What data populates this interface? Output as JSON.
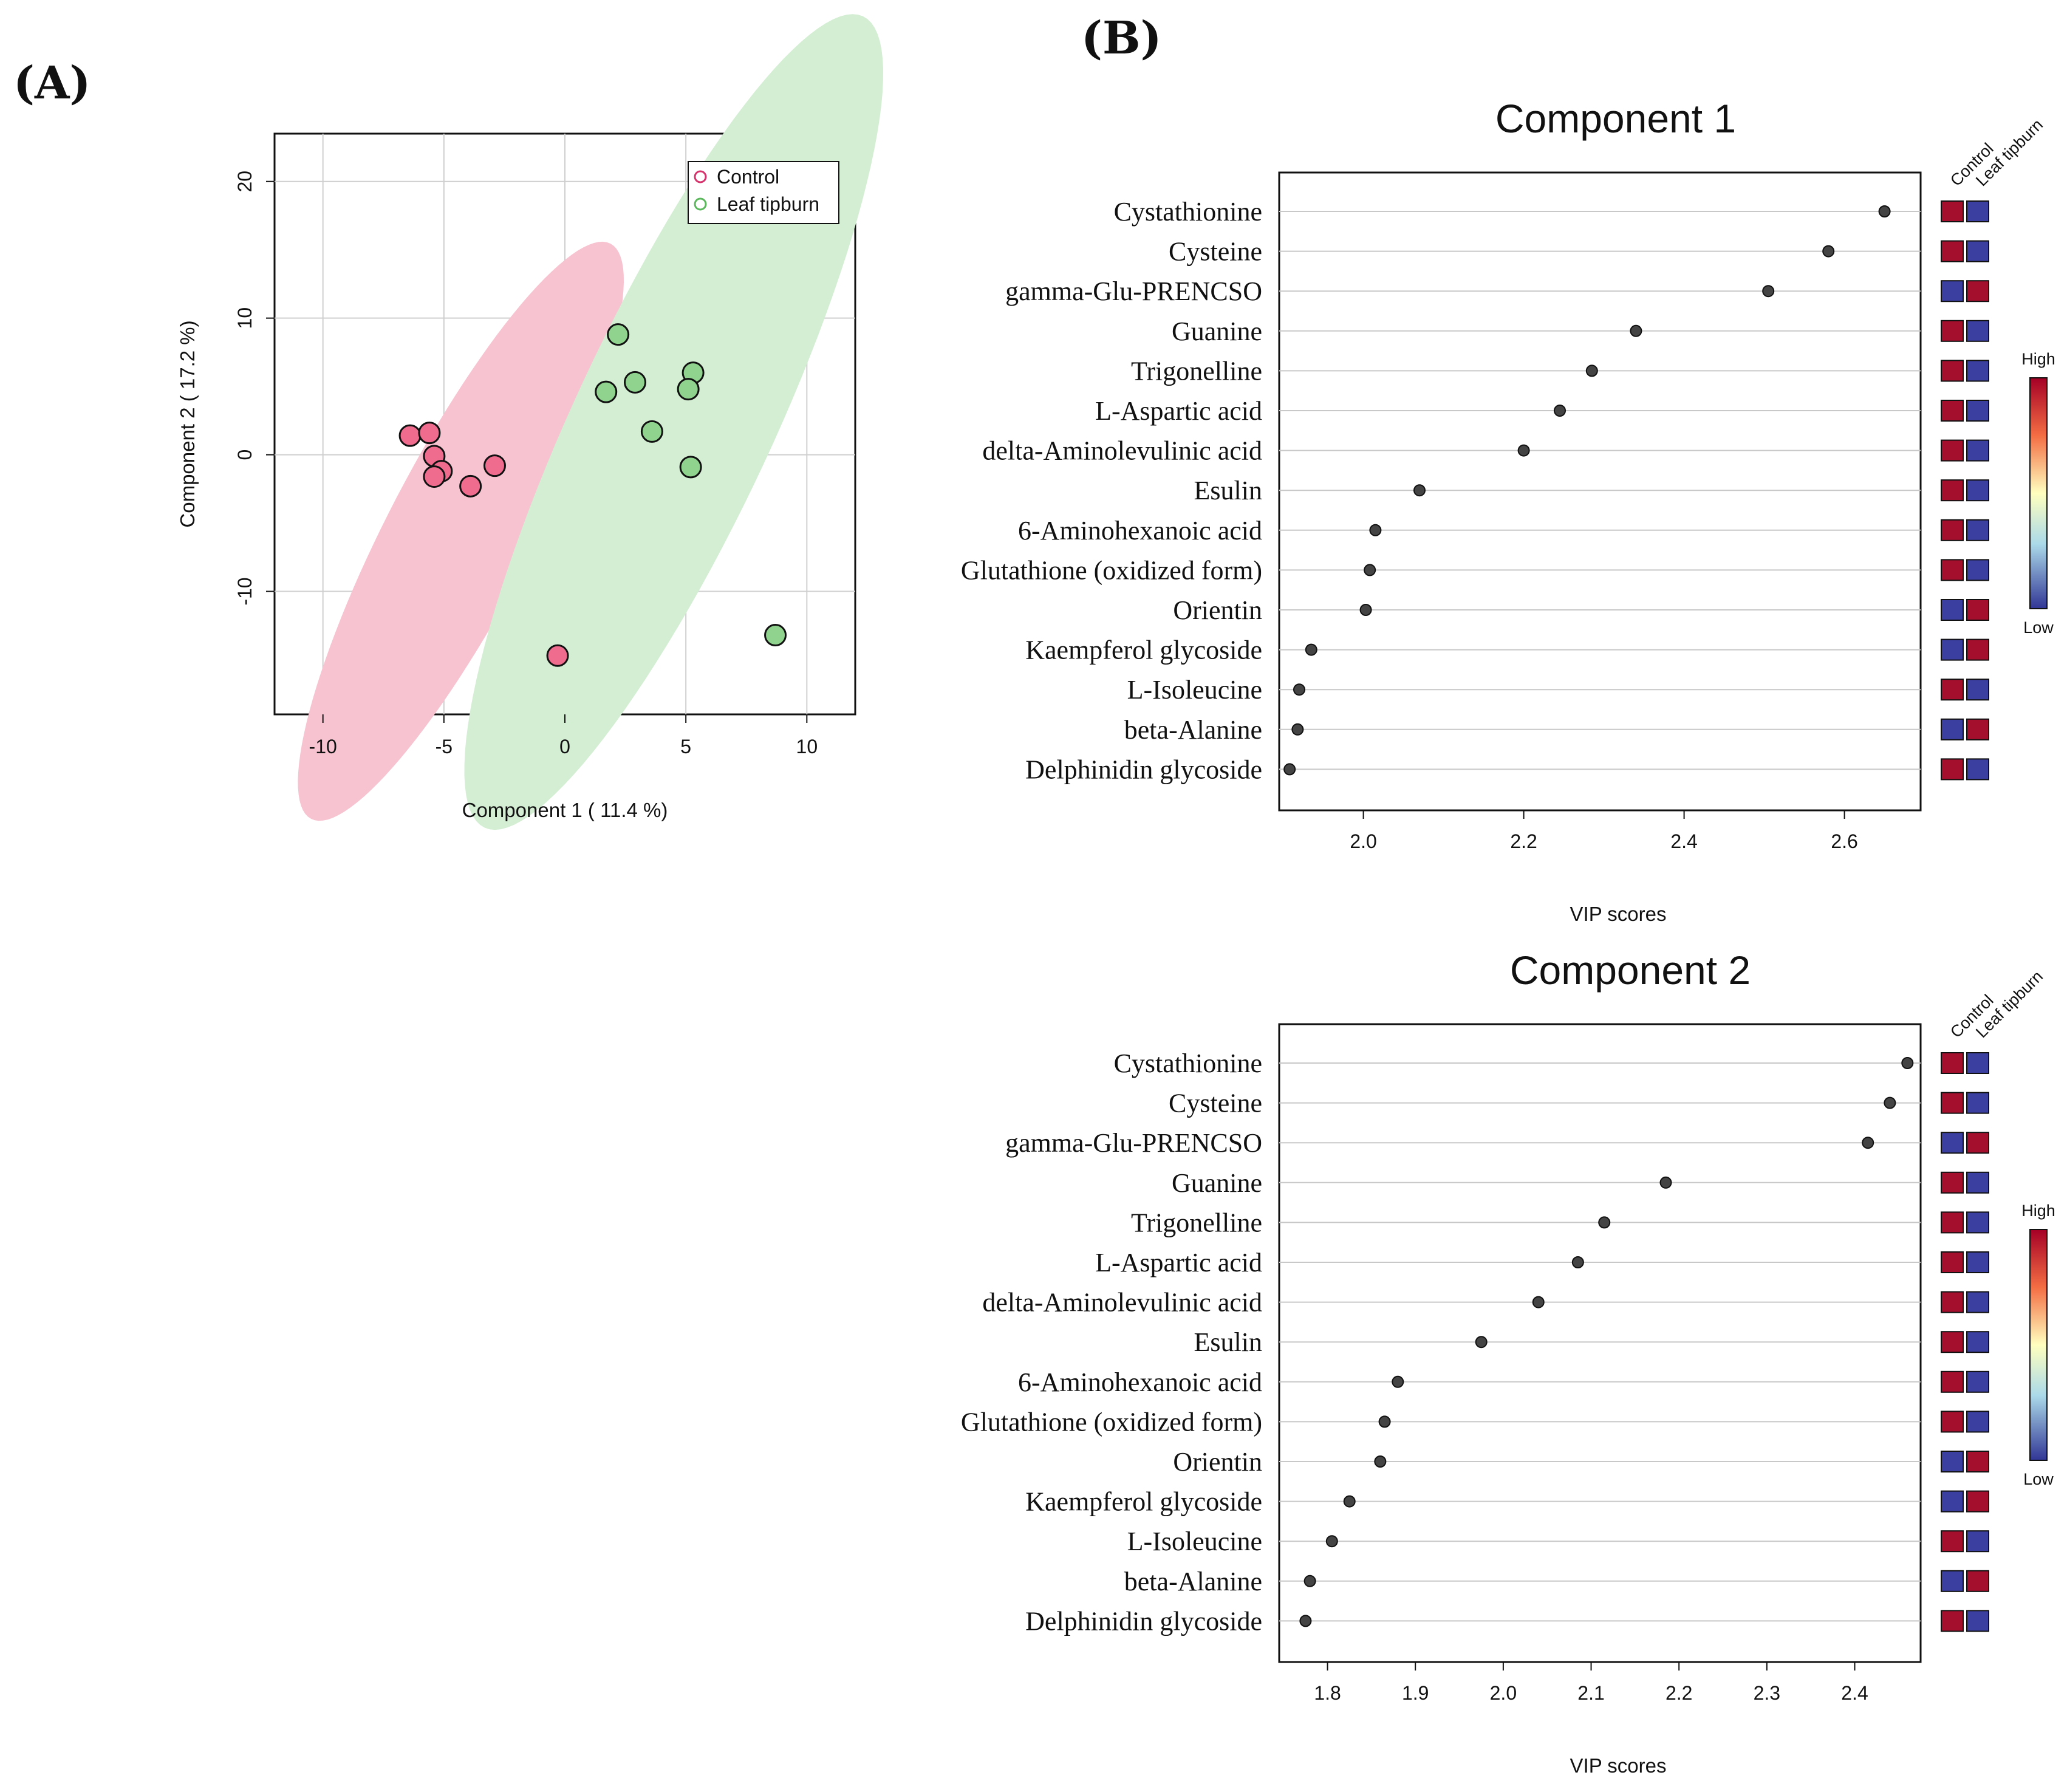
{
  "panels": {
    "a_label": "(A)",
    "b_label": "(B)"
  },
  "colors": {
    "control": "#f06c8e",
    "control_ellipse": "#f7c3d0",
    "leaf_tipburn": "#8fd38f",
    "leaf_ellipse": "#d3eed3",
    "legend_control_stroke": "#d6336c",
    "legend_leaf_stroke": "#5cb85c",
    "high": "#a50f2e",
    "low": "#3a3fa0",
    "dot": "#444444"
  },
  "chart_data": [
    {
      "type": "scatter",
      "title": "",
      "xlabel": "Component 1 ( 11.4 %)",
      "ylabel": "Component 2 ( 17.2 %)",
      "xlim": [
        -12,
        12
      ],
      "ylim": [
        -19,
        23.5
      ],
      "xticks": [
        -10,
        -5,
        0,
        5,
        10
      ],
      "yticks": [
        -10,
        0,
        10,
        20
      ],
      "xtick_labels": [
        "-10",
        "-5",
        "0",
        "5",
        "10"
      ],
      "ytick_labels": [
        "-10",
        "0",
        "10",
        "20"
      ],
      "grid": true,
      "legend_position": "top-right",
      "series": [
        {
          "name": "Control",
          "points": [
            [
              -6.4,
              1.4
            ],
            [
              -5.6,
              1.6
            ],
            [
              -5.4,
              -0.1
            ],
            [
              -5.1,
              -1.2
            ],
            [
              -5.4,
              -1.6
            ],
            [
              -3.9,
              -2.3
            ],
            [
              -2.9,
              -0.8
            ],
            [
              -0.3,
              -14.7
            ]
          ],
          "ellipse": {
            "center": [
              -4.3,
              -5.6
            ],
            "rx": 13.4,
            "ry": 3.0,
            "angle_deg": 62.5
          }
        },
        {
          "name": "Leaf tipburn",
          "points": [
            [
              2.2,
              8.8
            ],
            [
              2.9,
              5.3
            ],
            [
              1.7,
              4.6
            ],
            [
              5.3,
              6.0
            ],
            [
              5.1,
              4.8
            ],
            [
              3.6,
              1.7
            ],
            [
              5.2,
              -0.9
            ],
            [
              8.7,
              -13.2
            ]
          ],
          "ellipse": {
            "center": [
              4.5,
              2.4
            ],
            "rx": 18.5,
            "ry": 4.1,
            "angle_deg": 65
          }
        }
      ]
    },
    {
      "type": "scatter",
      "title": "Component 1",
      "xlabel": "VIP scores",
      "xlim": [
        1.895,
        2.695
      ],
      "xticks": [
        2.0,
        2.2,
        2.4,
        2.6
      ],
      "xtick_labels": [
        "2.0",
        "2.2",
        "2.4",
        "2.6"
      ],
      "categories": [
        "Cystathionine",
        "Cysteine",
        "gamma-Glu-PRENCSO",
        "Guanine",
        "Trigonelline",
        "L-Aspartic acid",
        "delta-Aminolevulinic acid",
        "Esulin",
        "6-Aminohexanoic acid",
        "Glutathione (oxidized form)",
        "Orientin",
        "Kaempferol glycoside",
        "L-Isoleucine",
        "beta-Alanine",
        "Delphinidin glycoside"
      ],
      "values": [
        2.65,
        2.58,
        2.505,
        2.34,
        2.285,
        2.245,
        2.2,
        2.07,
        2.015,
        2.008,
        2.003,
        1.935,
        1.92,
        1.918,
        1.908
      ],
      "heatmap_columns": [
        "Control",
        "Leaf tipburn"
      ],
      "heatmap": [
        [
          "high",
          "low"
        ],
        [
          "high",
          "low"
        ],
        [
          "low",
          "high"
        ],
        [
          "high",
          "low"
        ],
        [
          "high",
          "low"
        ],
        [
          "high",
          "low"
        ],
        [
          "high",
          "low"
        ],
        [
          "high",
          "low"
        ],
        [
          "high",
          "low"
        ],
        [
          "high",
          "low"
        ],
        [
          "low",
          "high"
        ],
        [
          "low",
          "high"
        ],
        [
          "high",
          "low"
        ],
        [
          "low",
          "high"
        ],
        [
          "high",
          "low"
        ]
      ],
      "colorbar": {
        "high_label": "High",
        "low_label": "Low"
      }
    },
    {
      "type": "scatter",
      "title": "Component 2",
      "xlabel": "VIP scores",
      "xlim": [
        1.745,
        2.475
      ],
      "xticks": [
        1.8,
        1.9,
        2.0,
        2.1,
        2.2,
        2.3,
        2.4
      ],
      "xtick_labels": [
        "1.8",
        "1.9",
        "2.0",
        "2.1",
        "2.2",
        "2.3",
        "2.4"
      ],
      "categories": [
        "Cystathionine",
        "Cysteine",
        "gamma-Glu-PRENCSO",
        "Guanine",
        "Trigonelline",
        "L-Aspartic acid",
        "delta-Aminolevulinic acid",
        "Esulin",
        "6-Aminohexanoic acid",
        "Glutathione (oxidized form)",
        "Orientin",
        "Kaempferol glycoside",
        "L-Isoleucine",
        "beta-Alanine",
        "Delphinidin glycoside"
      ],
      "values": [
        2.46,
        2.44,
        2.415,
        2.185,
        2.115,
        2.085,
        2.04,
        1.975,
        1.88,
        1.865,
        1.86,
        1.825,
        1.805,
        1.78,
        1.775
      ],
      "heatmap_columns": [
        "Control",
        "Leaf tipburn"
      ],
      "heatmap": [
        [
          "high",
          "low"
        ],
        [
          "high",
          "low"
        ],
        [
          "low",
          "high"
        ],
        [
          "high",
          "low"
        ],
        [
          "high",
          "low"
        ],
        [
          "high",
          "low"
        ],
        [
          "high",
          "low"
        ],
        [
          "high",
          "low"
        ],
        [
          "high",
          "low"
        ],
        [
          "high",
          "low"
        ],
        [
          "low",
          "high"
        ],
        [
          "low",
          "high"
        ],
        [
          "high",
          "low"
        ],
        [
          "low",
          "high"
        ],
        [
          "high",
          "low"
        ]
      ],
      "colorbar": {
        "high_label": "High",
        "low_label": "Low"
      }
    }
  ]
}
